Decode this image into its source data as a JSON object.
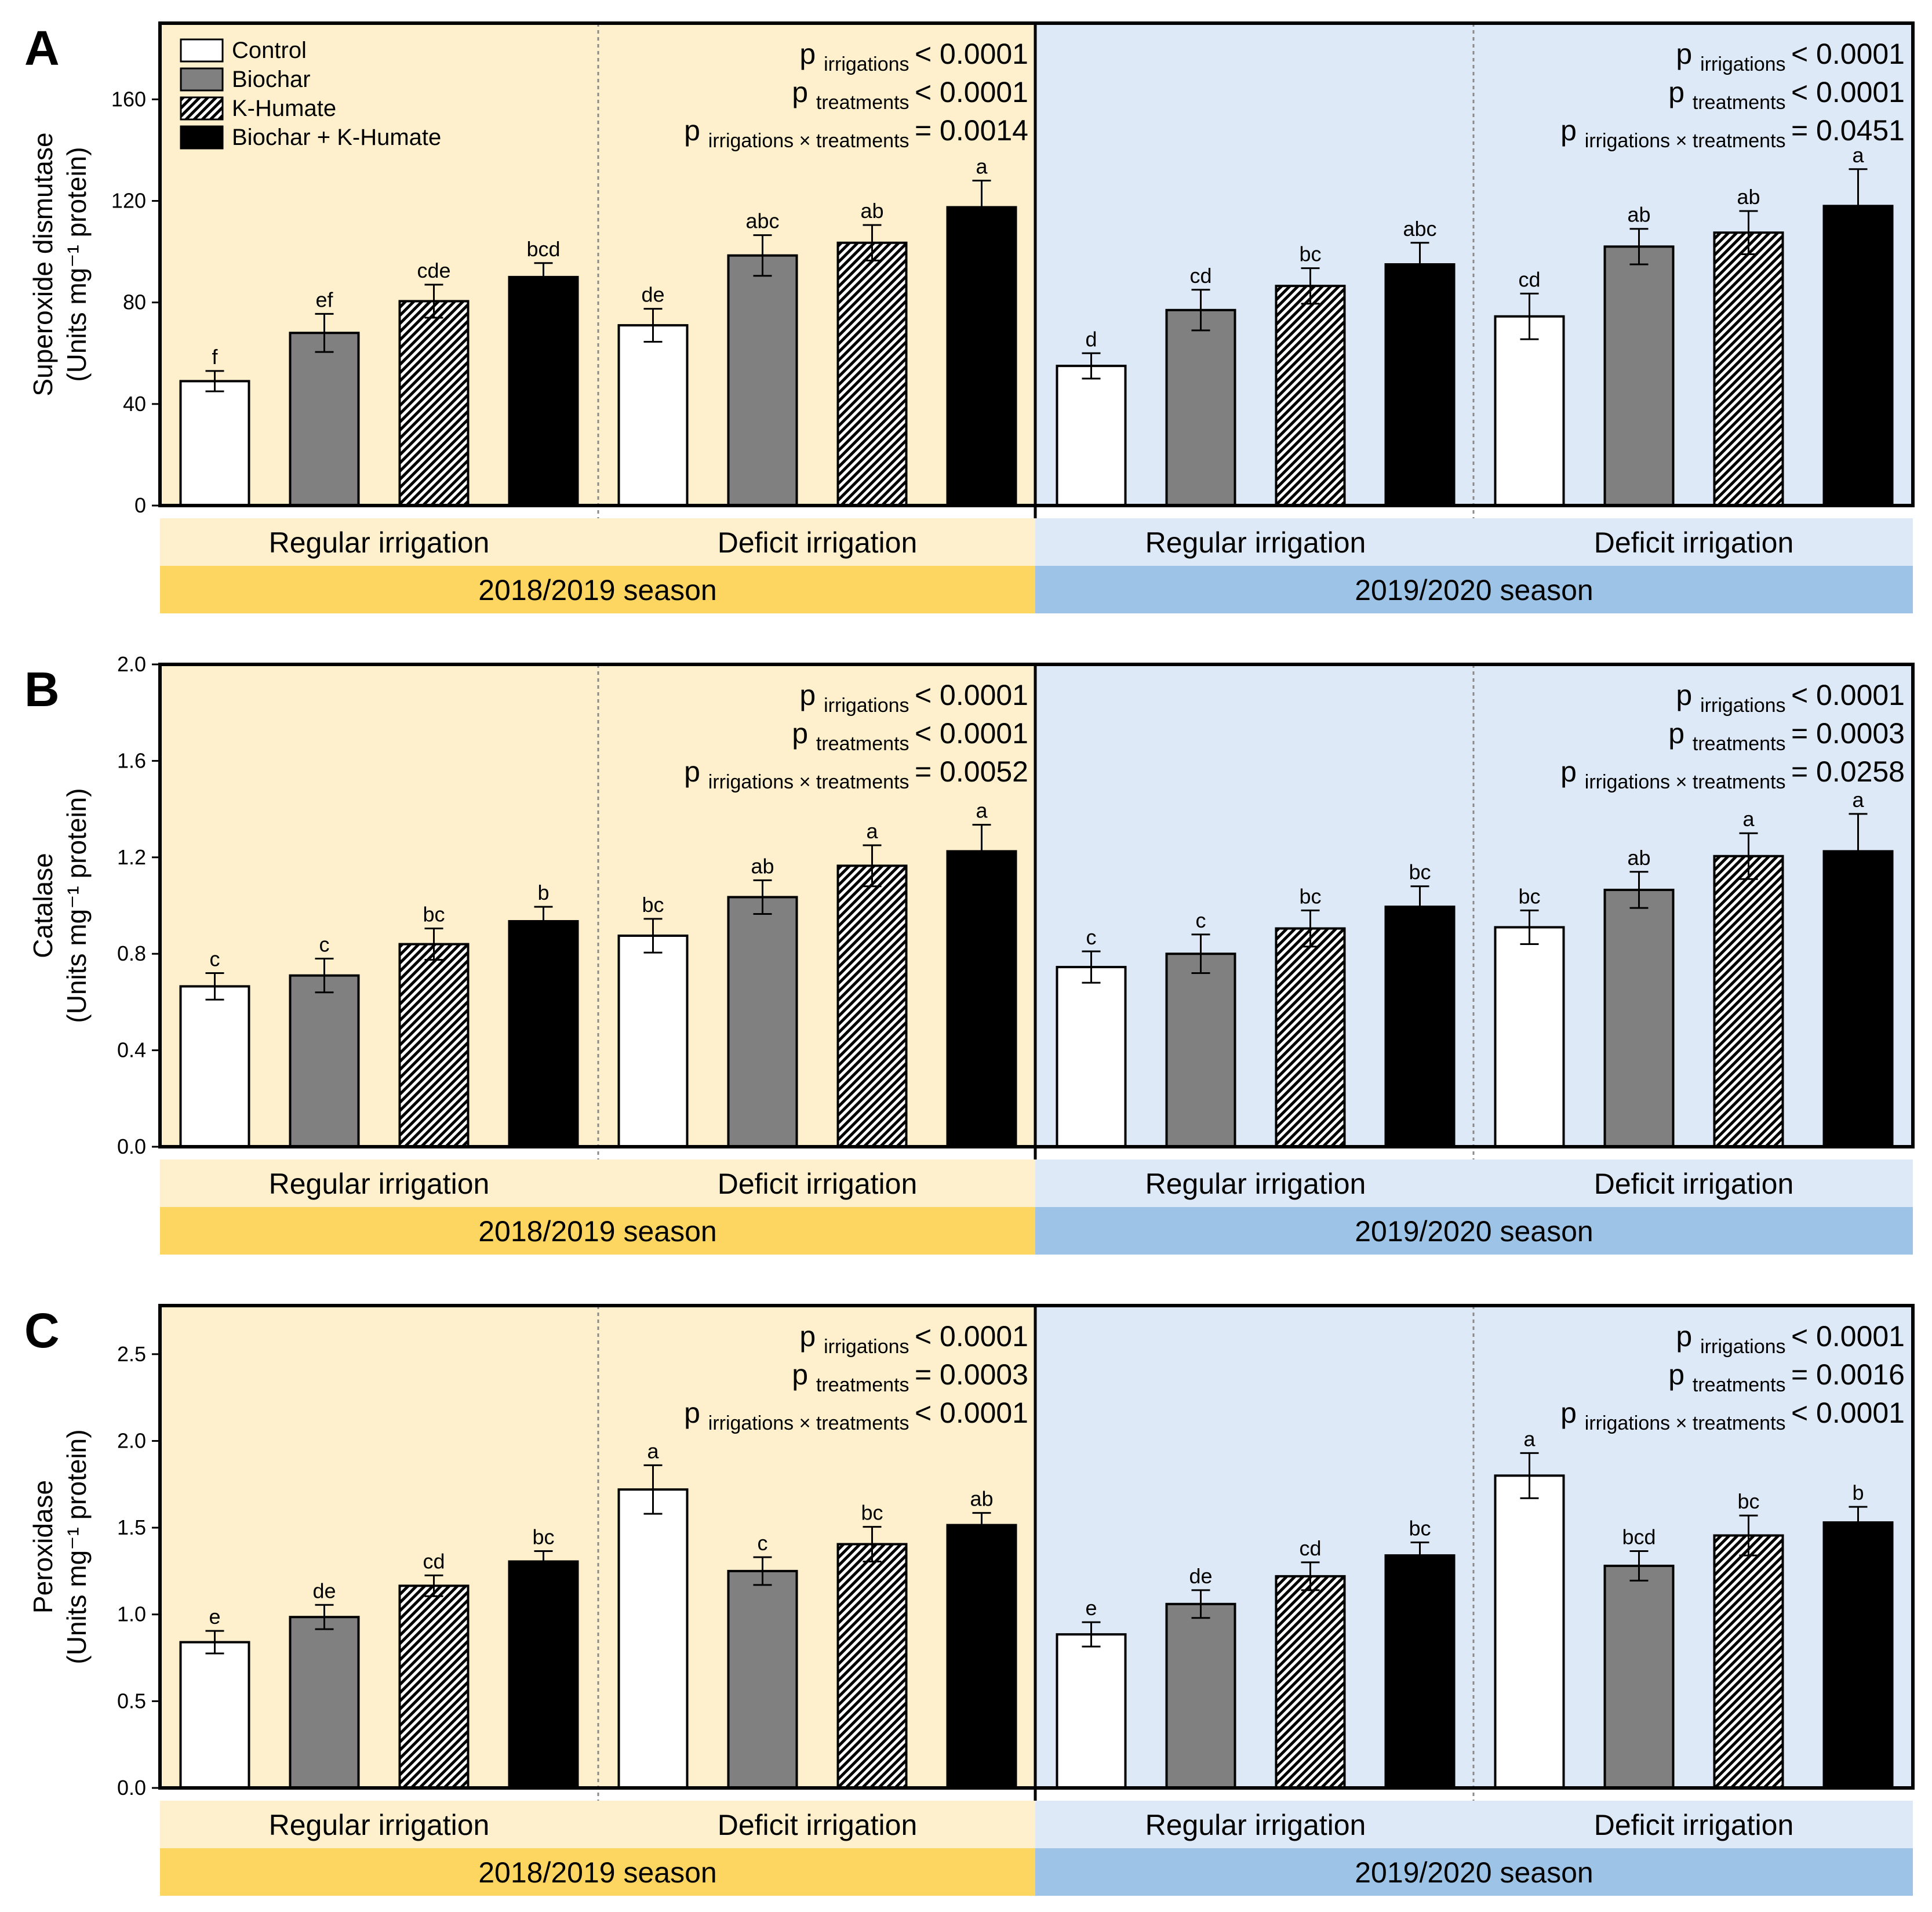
{
  "colors": {
    "season1_bg": "#fef0cc",
    "season2_bg": "#dde9f6",
    "season1_bar": "#fdd561",
    "season2_bar": "#9dc3e6",
    "control": "#ffffff",
    "biochar": "#808080",
    "khumate_bg": "#ffffff",
    "khumate_line": "#000000",
    "combo": "#000000"
  },
  "legend": [
    "Control",
    "Biochar",
    "K-Humate",
    "Biochar + K-Humate"
  ],
  "groups": [
    "Regular irrigation",
    "Deficit irrigation"
  ],
  "seasons": [
    "2018/2019 season",
    "2019/2020 season"
  ],
  "p_stat_labels": {
    "p": "p",
    "irrigations": "irrigations",
    "treatments": "treatments",
    "interaction": "irrigations × treatments"
  },
  "chart_data": [
    {
      "type": "bar",
      "panel": "A",
      "ylabel_line1": "Superoxide dismutase",
      "ylabel_line2": "(Units mg⁻¹ protein)",
      "ylim": [
        0,
        190
      ],
      "yticks": [
        0,
        40,
        80,
        120,
        160
      ],
      "tick_decimals": 0,
      "values": [
        49,
        68,
        80.5,
        90,
        71,
        98.5,
        103.5,
        117.5,
        55,
        77,
        86.5,
        95,
        74.5,
        102,
        107.5,
        118
      ],
      "errors": [
        4,
        7.5,
        6.5,
        5.5,
        6.5,
        8,
        7,
        10.5,
        5,
        8,
        7,
        8.5,
        9,
        7,
        8.5,
        14.5
      ],
      "letters": [
        "f",
        "ef",
        "cde",
        "bcd",
        "de",
        "abc",
        "ab",
        "a",
        "d",
        "cd",
        "bc",
        "abc",
        "cd",
        "ab",
        "ab",
        "a"
      ],
      "pvalues": [
        [
          "< 0.0001",
          "< 0.0001",
          "= 0.0014"
        ],
        [
          "< 0.0001",
          "< 0.0001",
          "= 0.0451"
        ]
      ]
    },
    {
      "type": "bar",
      "panel": "B",
      "ylabel_line1": "Catalase",
      "ylabel_line2": "(Units mg⁻¹ protein)",
      "ylim": [
        0,
        2.0
      ],
      "yticks": [
        0,
        0.4,
        0.8,
        1.2,
        1.6,
        2.0
      ],
      "tick_decimals": 1,
      "values": [
        0.665,
        0.71,
        0.84,
        0.935,
        0.875,
        1.035,
        1.165,
        1.225,
        0.745,
        0.8,
        0.905,
        0.995,
        0.91,
        1.065,
        1.205,
        1.225
      ],
      "errors": [
        0.055,
        0.07,
        0.065,
        0.06,
        0.07,
        0.07,
        0.085,
        0.11,
        0.065,
        0.08,
        0.075,
        0.085,
        0.07,
        0.075,
        0.095,
        0.155
      ],
      "letters": [
        "c",
        "c",
        "bc",
        "b",
        "bc",
        "ab",
        "a",
        "a",
        "c",
        "c",
        "bc",
        "bc",
        "bc",
        "ab",
        "a",
        "a"
      ],
      "pvalues": [
        [
          "< 0.0001",
          "< 0.0001",
          "= 0.0052"
        ],
        [
          "< 0.0001",
          "= 0.0003",
          "= 0.0258"
        ]
      ]
    },
    {
      "type": "bar",
      "panel": "C",
      "ylabel_line1": "Peroxidase",
      "ylabel_line2": "(Units mg⁻¹ protein)",
      "ylim": [
        0,
        2.78
      ],
      "yticks": [
        0,
        0.5,
        1.0,
        1.5,
        2.0,
        2.5
      ],
      "tick_decimals": 1,
      "values": [
        0.84,
        0.985,
        1.165,
        1.305,
        1.72,
        1.25,
        1.405,
        1.515,
        0.885,
        1.06,
        1.22,
        1.34,
        1.8,
        1.28,
        1.455,
        1.53
      ],
      "errors": [
        0.065,
        0.07,
        0.06,
        0.06,
        0.14,
        0.08,
        0.1,
        0.07,
        0.07,
        0.08,
        0.08,
        0.075,
        0.13,
        0.085,
        0.115,
        0.09
      ],
      "letters": [
        "e",
        "de",
        "cd",
        "bc",
        "a",
        "c",
        "bc",
        "ab",
        "e",
        "de",
        "cd",
        "bc",
        "a",
        "bcd",
        "bc",
        "b"
      ],
      "pvalues": [
        [
          "< 0.0001",
          "= 0.0003",
          "< 0.0001"
        ],
        [
          "< 0.0001",
          "= 0.0016",
          "< 0.0001"
        ]
      ]
    }
  ]
}
